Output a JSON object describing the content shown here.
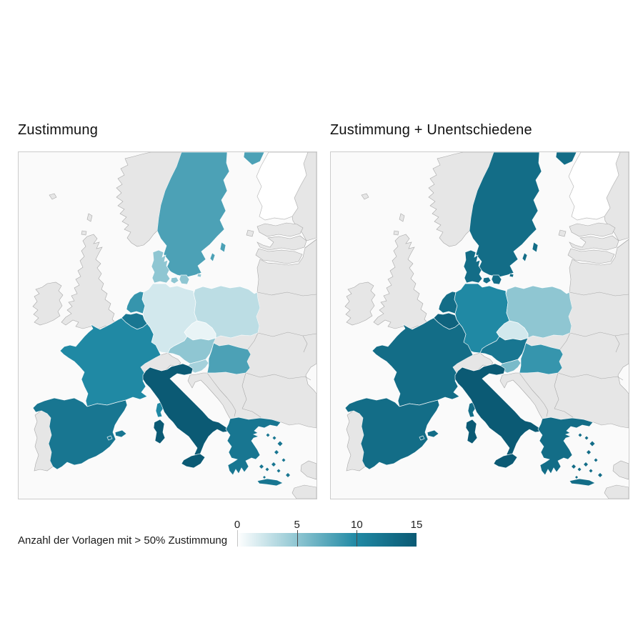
{
  "titles": {
    "left": "Zustimmung",
    "right": "Zustimmung + Unentschiedene"
  },
  "legend": {
    "label": "Anzahl der Vorlagen mit > 50% Zustimmung",
    "ticks": [
      "0",
      "5",
      "10",
      "15"
    ]
  },
  "colors": {
    "sea": "#fafafa",
    "panel_border": "#cccccc",
    "no_data": "#e6e6e6",
    "country_border_gray": "#a8a8a8",
    "country_border_light": "rgba(255,255,255,0.9)",
    "scale_stops": [
      "#ffffff",
      "#8fc6d2",
      "#2089a4",
      "#0b5a74"
    ]
  },
  "chart_data": {
    "type": "heatmap",
    "subtype": "choropleth",
    "title": "Anzahl der Vorlagen mit > 50% Zustimmung",
    "scale": {
      "min": 0,
      "max": 15,
      "ticks": [
        0,
        5,
        10,
        15
      ],
      "legend_position": "bottom"
    },
    "countries": {
      "SE": "Schweden",
      "FI": "Finnland",
      "DK": "Dänemark",
      "NL": "Niederlande",
      "BE": "Belgien",
      "DE": "Deutschland",
      "PL": "Polen",
      "CZ": "Tschechien",
      "AT": "Österreich",
      "HU": "Ungarn",
      "SI": "Slowenien",
      "FR": "Frankreich",
      "ES": "Spanien",
      "IT": "Italien",
      "GR": "Griechenland"
    },
    "maps": [
      {
        "title": "Zustimmung",
        "values": {
          "SE": 8,
          "FI": 0,
          "DK": 5,
          "NL": 9,
          "BE": 12,
          "DE": 2,
          "PL": 3,
          "CZ": 1,
          "AT": 5,
          "HU": 8,
          "SI": 4,
          "FR": 10,
          "ES": 12,
          "IT": 15,
          "GR": 12
        }
      },
      {
        "title": "Zustimmung + Unentschiedene",
        "values": {
          "SE": 13,
          "FI": 0,
          "DK": 13,
          "NL": 13,
          "BE": 14,
          "DE": 10,
          "PL": 5,
          "CZ": 2,
          "AT": 12,
          "HU": 9,
          "SI": 6,
          "FR": 13,
          "ES": 13,
          "IT": 15,
          "GR": 13
        }
      }
    ],
    "no_data_regions": [
      "Norwegen",
      "Grossbritannien",
      "Irland",
      "Portugal",
      "Schweiz",
      "Slowakei",
      "Kroatien",
      "Balkan",
      "Baltikum",
      "Russland",
      "Belarus",
      "Ukraine",
      "Rumänien",
      "Bulgarien",
      "Türkei"
    ]
  }
}
